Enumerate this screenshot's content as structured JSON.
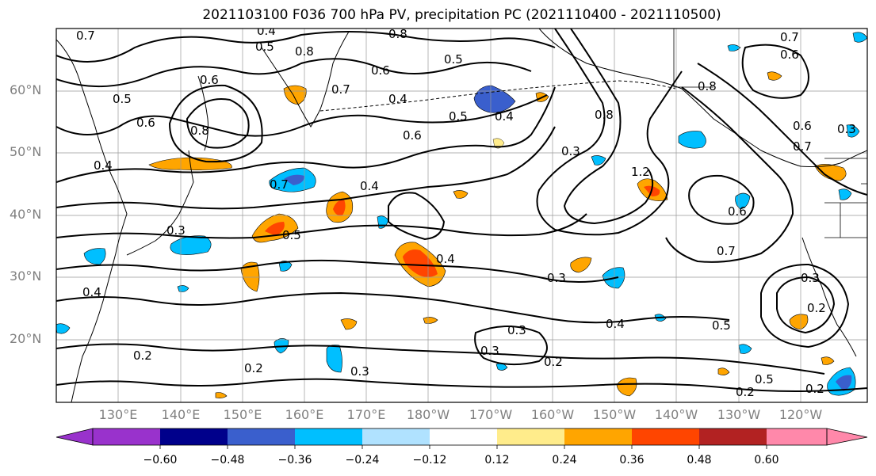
{
  "title": "2021103100 F036 700 hPa PV, precipitation PC (2021110400 - 2021110500)",
  "lat_labels": [
    "60°N",
    "50°N",
    "40°N",
    "30°N",
    "20°N"
  ],
  "lon_labels": [
    "130°E",
    "140°E",
    "150°E",
    "160°E",
    "170°E",
    "180°W",
    "170°W",
    "160°W",
    "150°W",
    "140°W",
    "130°W",
    "120°W"
  ],
  "contour_labels": [
    "0.7",
    "0.4",
    "0.8",
    "0.5",
    "0.8",
    "0.6",
    "0.5",
    "0.5",
    "0.4",
    "0.7",
    "0.8",
    "0.6",
    "0.5",
    "0.6",
    "0.4",
    "0.8",
    "0.3",
    "0.6",
    "0.4",
    "0.7",
    "0.4",
    "0.5",
    "0.3",
    "0.4",
    "0.2",
    "0.4",
    "0.3",
    "0.2",
    "0.3",
    "0.2",
    "0.3",
    "0.3",
    "0.4",
    "0.5",
    "1.2",
    "0.6",
    "0.7",
    "0.3",
    "0.2",
    "0.5",
    "0.2",
    "0.2",
    "0.6",
    "0.7",
    "0.3",
    "0.8",
    "0.6",
    "0.7"
  ],
  "colorbar": {
    "ticks": [
      "−0.60",
      "−0.48",
      "−0.36",
      "−0.24",
      "−0.12",
      "0.12",
      "0.24",
      "0.36",
      "0.48",
      "0.60"
    ],
    "colors": [
      "#9932cc",
      "#00008b",
      "#3a5fcd",
      "#00bfff",
      "#b0e2ff",
      "#ffffff",
      "#ffec8b",
      "#ffa500",
      "#ff4500",
      "#b22222",
      "#ff88aa"
    ]
  }
}
